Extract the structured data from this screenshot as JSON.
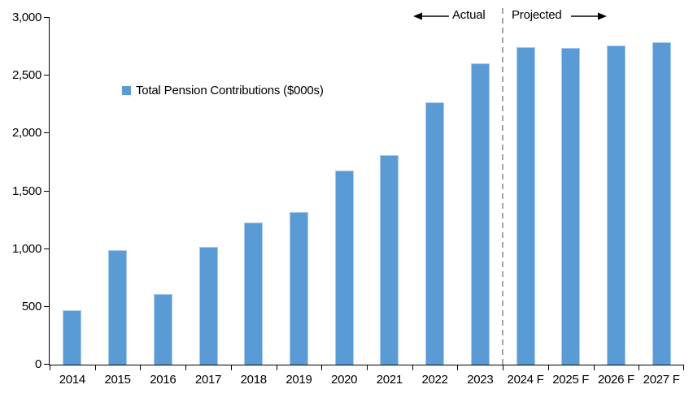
{
  "chart_data": {
    "type": "bar",
    "title": "",
    "legend": "Total Pension Contributions ($000s)",
    "categories": [
      "2014",
      "2015",
      "2016",
      "2017",
      "2018",
      "2019",
      "2020",
      "2021",
      "2022",
      "2023",
      "2024 F",
      "2025 F",
      "2026 F",
      "2027 F"
    ],
    "values": [
      470,
      990,
      610,
      1020,
      1230,
      1320,
      1680,
      1810,
      2270,
      2610,
      2750,
      2740,
      2760,
      2790
    ],
    "xlabel": "",
    "ylabel": "",
    "ylim": [
      0,
      3000
    ],
    "ytick_step": 500,
    "ytick_labels": [
      "0",
      "500",
      "1,000",
      "1,500",
      "2,000",
      "2,500",
      "3,000"
    ],
    "grid": false,
    "legend_position": "inside-upper-left",
    "bar_color": "#5B9BD5",
    "bar_border_color": "#A9CBED",
    "divider": {
      "after_category": "2023",
      "after_index": 9,
      "style": "dashed",
      "color": "#A6A6A6"
    },
    "annotations": {
      "actual": "Actual",
      "projected": "Projected"
    }
  }
}
